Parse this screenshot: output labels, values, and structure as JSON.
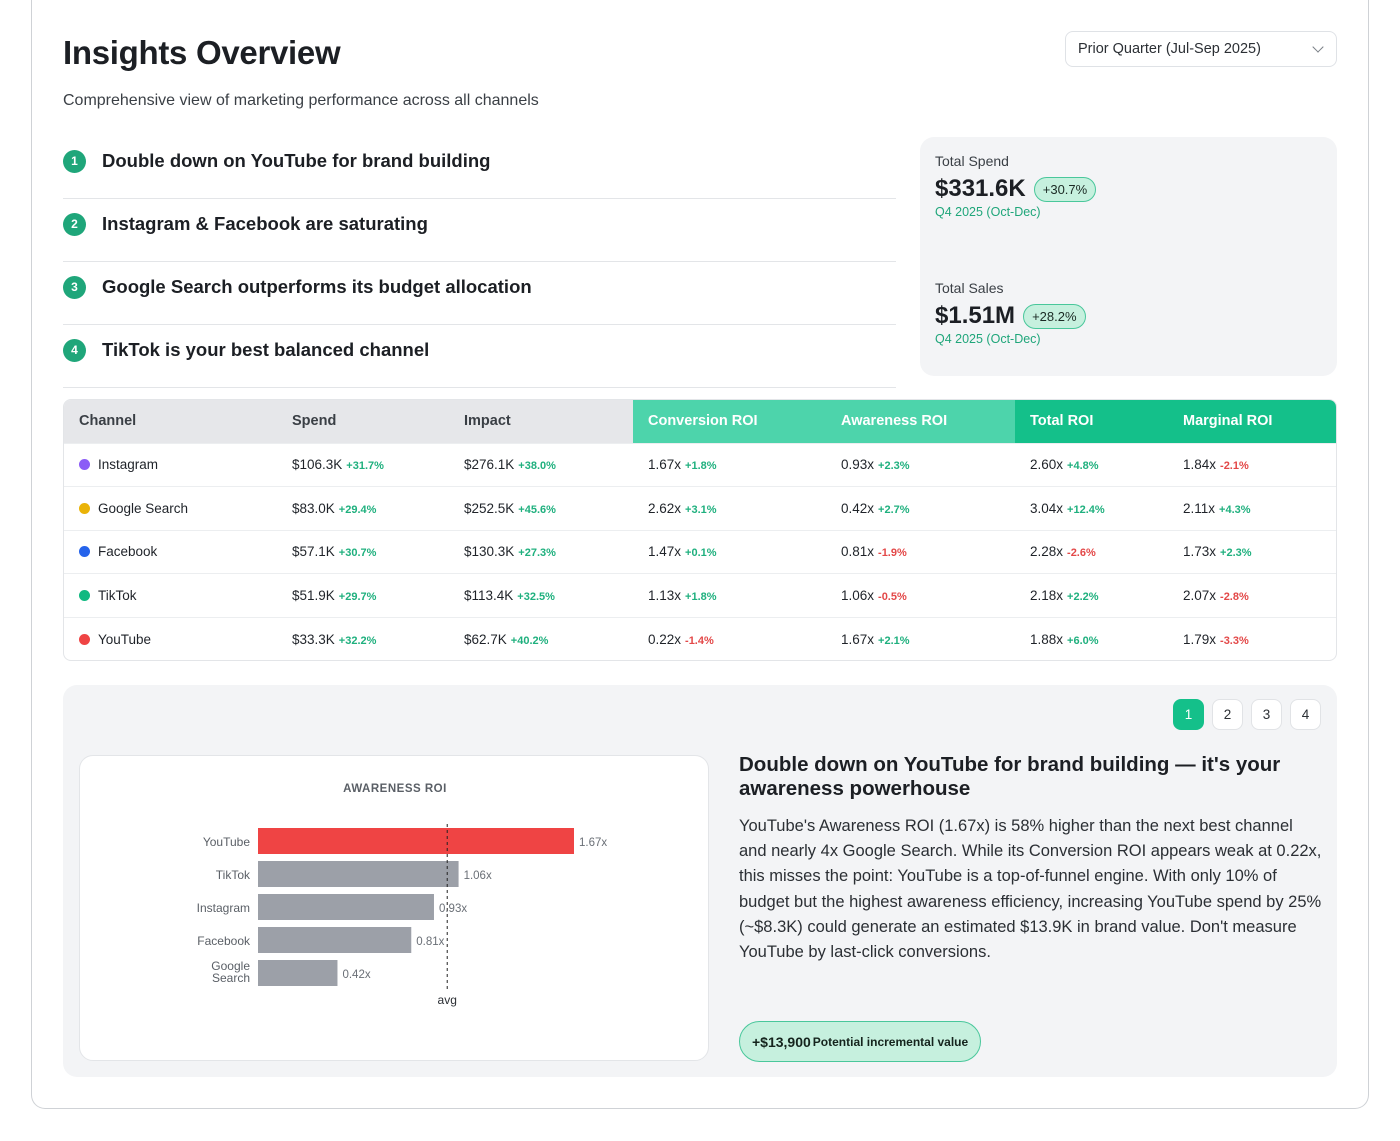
{
  "header": {
    "title": "Insights Overview",
    "subtitle": "Comprehensive view of marketing performance across all channels",
    "period_select": "Prior Quarter (Jul-Sep 2025)"
  },
  "insights": [
    {
      "num": "1",
      "text": "Double down on YouTube for brand building"
    },
    {
      "num": "2",
      "text": "Instagram & Facebook are saturating"
    },
    {
      "num": "3",
      "text": "Google Search outperforms its budget allocation"
    },
    {
      "num": "4",
      "text": "TikTok is your best balanced channel"
    }
  ],
  "kpis": {
    "spend": {
      "label": "Total Spend",
      "value": "$331.6K",
      "delta": "+30.7%",
      "period": "Q4 2025 (Oct-Dec)"
    },
    "sales": {
      "label": "Total Sales",
      "value": "$1.51M",
      "delta": "+28.2%",
      "period": "Q4 2025 (Oct-Dec)"
    }
  },
  "table": {
    "columns": [
      "Channel",
      "Spend",
      "Impact",
      "Conversion ROI",
      "Awareness ROI",
      "Total ROI",
      "Marginal ROI"
    ],
    "rows": [
      {
        "channel": "Instagram",
        "color": "#8b5cf6",
        "cells": [
          [
            "$106.3K",
            "+31.7%"
          ],
          [
            "$276.1K",
            "+38.0%"
          ],
          [
            "1.67x",
            "+1.8%"
          ],
          [
            "0.93x",
            "+2.3%"
          ],
          [
            "2.60x",
            "+4.8%"
          ],
          [
            "1.84x",
            "-2.1%"
          ]
        ]
      },
      {
        "channel": "Google Search",
        "color": "#eab308",
        "cells": [
          [
            "$83.0K",
            "+29.4%"
          ],
          [
            "$252.5K",
            "+45.6%"
          ],
          [
            "2.62x",
            "+3.1%"
          ],
          [
            "0.42x",
            "+2.7%"
          ],
          [
            "3.04x",
            "+12.4%"
          ],
          [
            "2.11x",
            "+4.3%"
          ]
        ]
      },
      {
        "channel": "Facebook",
        "color": "#2563eb",
        "cells": [
          [
            "$57.1K",
            "+30.7%"
          ],
          [
            "$130.3K",
            "+27.3%"
          ],
          [
            "1.47x",
            "+0.1%"
          ],
          [
            "0.81x",
            "-1.9%"
          ],
          [
            "2.28x",
            "-2.6%"
          ],
          [
            "1.73x",
            "+2.3%"
          ]
        ]
      },
      {
        "channel": "TikTok",
        "color": "#10b981",
        "cells": [
          [
            "$51.9K",
            "+29.7%"
          ],
          [
            "$113.4K",
            "+32.5%"
          ],
          [
            "1.13x",
            "+1.8%"
          ],
          [
            "1.06x",
            "-0.5%"
          ],
          [
            "2.18x",
            "+2.2%"
          ],
          [
            "2.07x",
            "-2.8%"
          ]
        ]
      },
      {
        "channel": "YouTube",
        "color": "#ef4444",
        "cells": [
          [
            "$33.3K",
            "+32.2%"
          ],
          [
            "$62.7K",
            "+40.2%"
          ],
          [
            "0.22x",
            "-1.4%"
          ],
          [
            "1.67x",
            "+2.1%"
          ],
          [
            "1.88x",
            "+6.0%"
          ],
          [
            "1.79x",
            "-3.3%"
          ]
        ]
      }
    ]
  },
  "pager": [
    "1",
    "2",
    "3",
    "4"
  ],
  "detail": {
    "title": "Double down on YouTube for brand building — it's your awareness powerhouse",
    "body": "YouTube's Awareness ROI (1.67x) is 58% higher than the next best channel and nearly 4x Google Search. While its Conversion ROI appears weak at 0.22x, this misses the point: YouTube is a top-of-funnel engine. With only 10% of budget but the highest awareness efficiency, increasing YouTube spend by 25% (~$8.3K) could generate an estimated $13.9K in brand value. Don't measure YouTube by last-click conversions.",
    "value_amount": "+$13,900",
    "value_label": "Potential incremental value"
  },
  "chart_data": {
    "type": "bar",
    "orientation": "horizontal",
    "title": "AWARENESS ROI",
    "categories": [
      "YouTube",
      "TikTok",
      "Instagram",
      "Facebook",
      "Google Search"
    ],
    "values": [
      1.67,
      1.06,
      0.93,
      0.81,
      0.42
    ],
    "value_labels": [
      "1.67x",
      "1.06x",
      "0.93x",
      "0.81x",
      "0.42x"
    ],
    "highlight_color": "#ef4444",
    "bar_color": "#9ca0a8",
    "reference_line": {
      "label": "avg",
      "value": 1.0
    },
    "xlim": [
      0,
      1.67
    ]
  }
}
